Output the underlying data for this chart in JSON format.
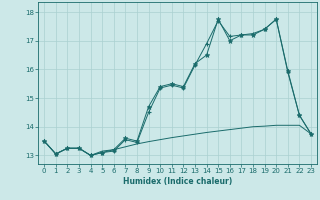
{
  "xlabel": "Humidex (Indice chaleur)",
  "background_color": "#cce8e8",
  "grid_color": "#aad0d0",
  "line_color": "#1a6b6b",
  "xlim": [
    -0.5,
    23.5
  ],
  "ylim": [
    12.7,
    18.35
  ],
  "yticks": [
    13,
    14,
    15,
    16,
    17,
    18
  ],
  "xticks": [
    0,
    1,
    2,
    3,
    4,
    5,
    6,
    7,
    8,
    9,
    10,
    11,
    12,
    13,
    14,
    15,
    16,
    17,
    18,
    19,
    20,
    21,
    22,
    23
  ],
  "line1_x": [
    0,
    1,
    2,
    3,
    4,
    5,
    6,
    7,
    8,
    9,
    10,
    11,
    12,
    13,
    14,
    15,
    16,
    17,
    18,
    19,
    20,
    21,
    22,
    23
  ],
  "line1_y": [
    13.5,
    13.05,
    13.25,
    13.25,
    13.0,
    13.1,
    13.2,
    13.6,
    13.5,
    14.7,
    15.4,
    15.5,
    15.4,
    16.2,
    16.5,
    17.75,
    17.0,
    17.2,
    17.2,
    17.4,
    17.75,
    15.95,
    14.4,
    13.75
  ],
  "line2_x": [
    0,
    1,
    2,
    3,
    4,
    5,
    6,
    7,
    8,
    9,
    10,
    11,
    12,
    13,
    14,
    15,
    16,
    17,
    18,
    19,
    20,
    21,
    22,
    23
  ],
  "line2_y": [
    13.5,
    13.05,
    13.25,
    13.25,
    13.0,
    13.1,
    13.15,
    13.55,
    13.45,
    14.5,
    15.35,
    15.45,
    15.35,
    16.15,
    16.9,
    17.7,
    17.15,
    17.2,
    17.25,
    17.4,
    17.75,
    15.9,
    14.4,
    13.75
  ],
  "line3_x": [
    0,
    1,
    2,
    3,
    4,
    5,
    6,
    7,
    8,
    9,
    10,
    11,
    12,
    13,
    14,
    15,
    16,
    17,
    18,
    19,
    20,
    21,
    22,
    23
  ],
  "line3_y": [
    13.5,
    13.05,
    13.25,
    13.25,
    13.0,
    13.15,
    13.2,
    13.3,
    13.4,
    13.48,
    13.55,
    13.62,
    13.68,
    13.74,
    13.8,
    13.85,
    13.9,
    13.95,
    14.0,
    14.02,
    14.05,
    14.05,
    14.05,
    13.75
  ]
}
